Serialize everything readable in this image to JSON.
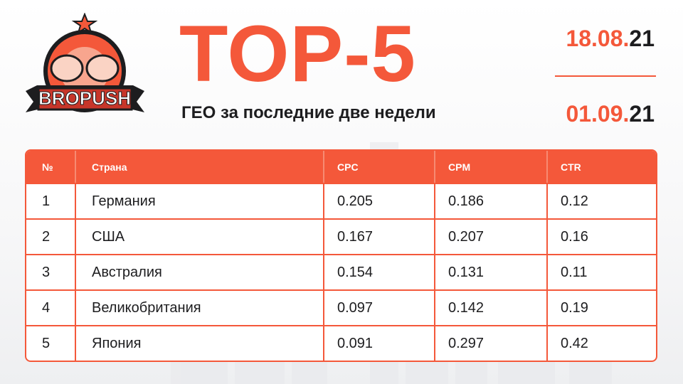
{
  "logo": {
    "text": "BROPUSH"
  },
  "header": {
    "title": "TOP-5",
    "subtitle": "ГЕО за последние две недели"
  },
  "dates": [
    {
      "day_month": "18.08.",
      "year": "21"
    },
    {
      "day_month": "01.09.",
      "year": "21"
    }
  ],
  "table": {
    "columns": [
      "№",
      "Страна",
      "CPC",
      "CPM",
      "CTR"
    ],
    "rows": [
      [
        1,
        "Германия",
        0.205,
        0.186,
        0.12
      ],
      [
        2,
        "США",
        0.167,
        0.207,
        0.16
      ],
      [
        3,
        "Австралия",
        0.154,
        0.131,
        0.11
      ],
      [
        4,
        "Великобритания",
        0.097,
        0.142,
        0.19
      ],
      [
        5,
        "Япония",
        0.091,
        0.297,
        0.42
      ]
    ]
  }
}
